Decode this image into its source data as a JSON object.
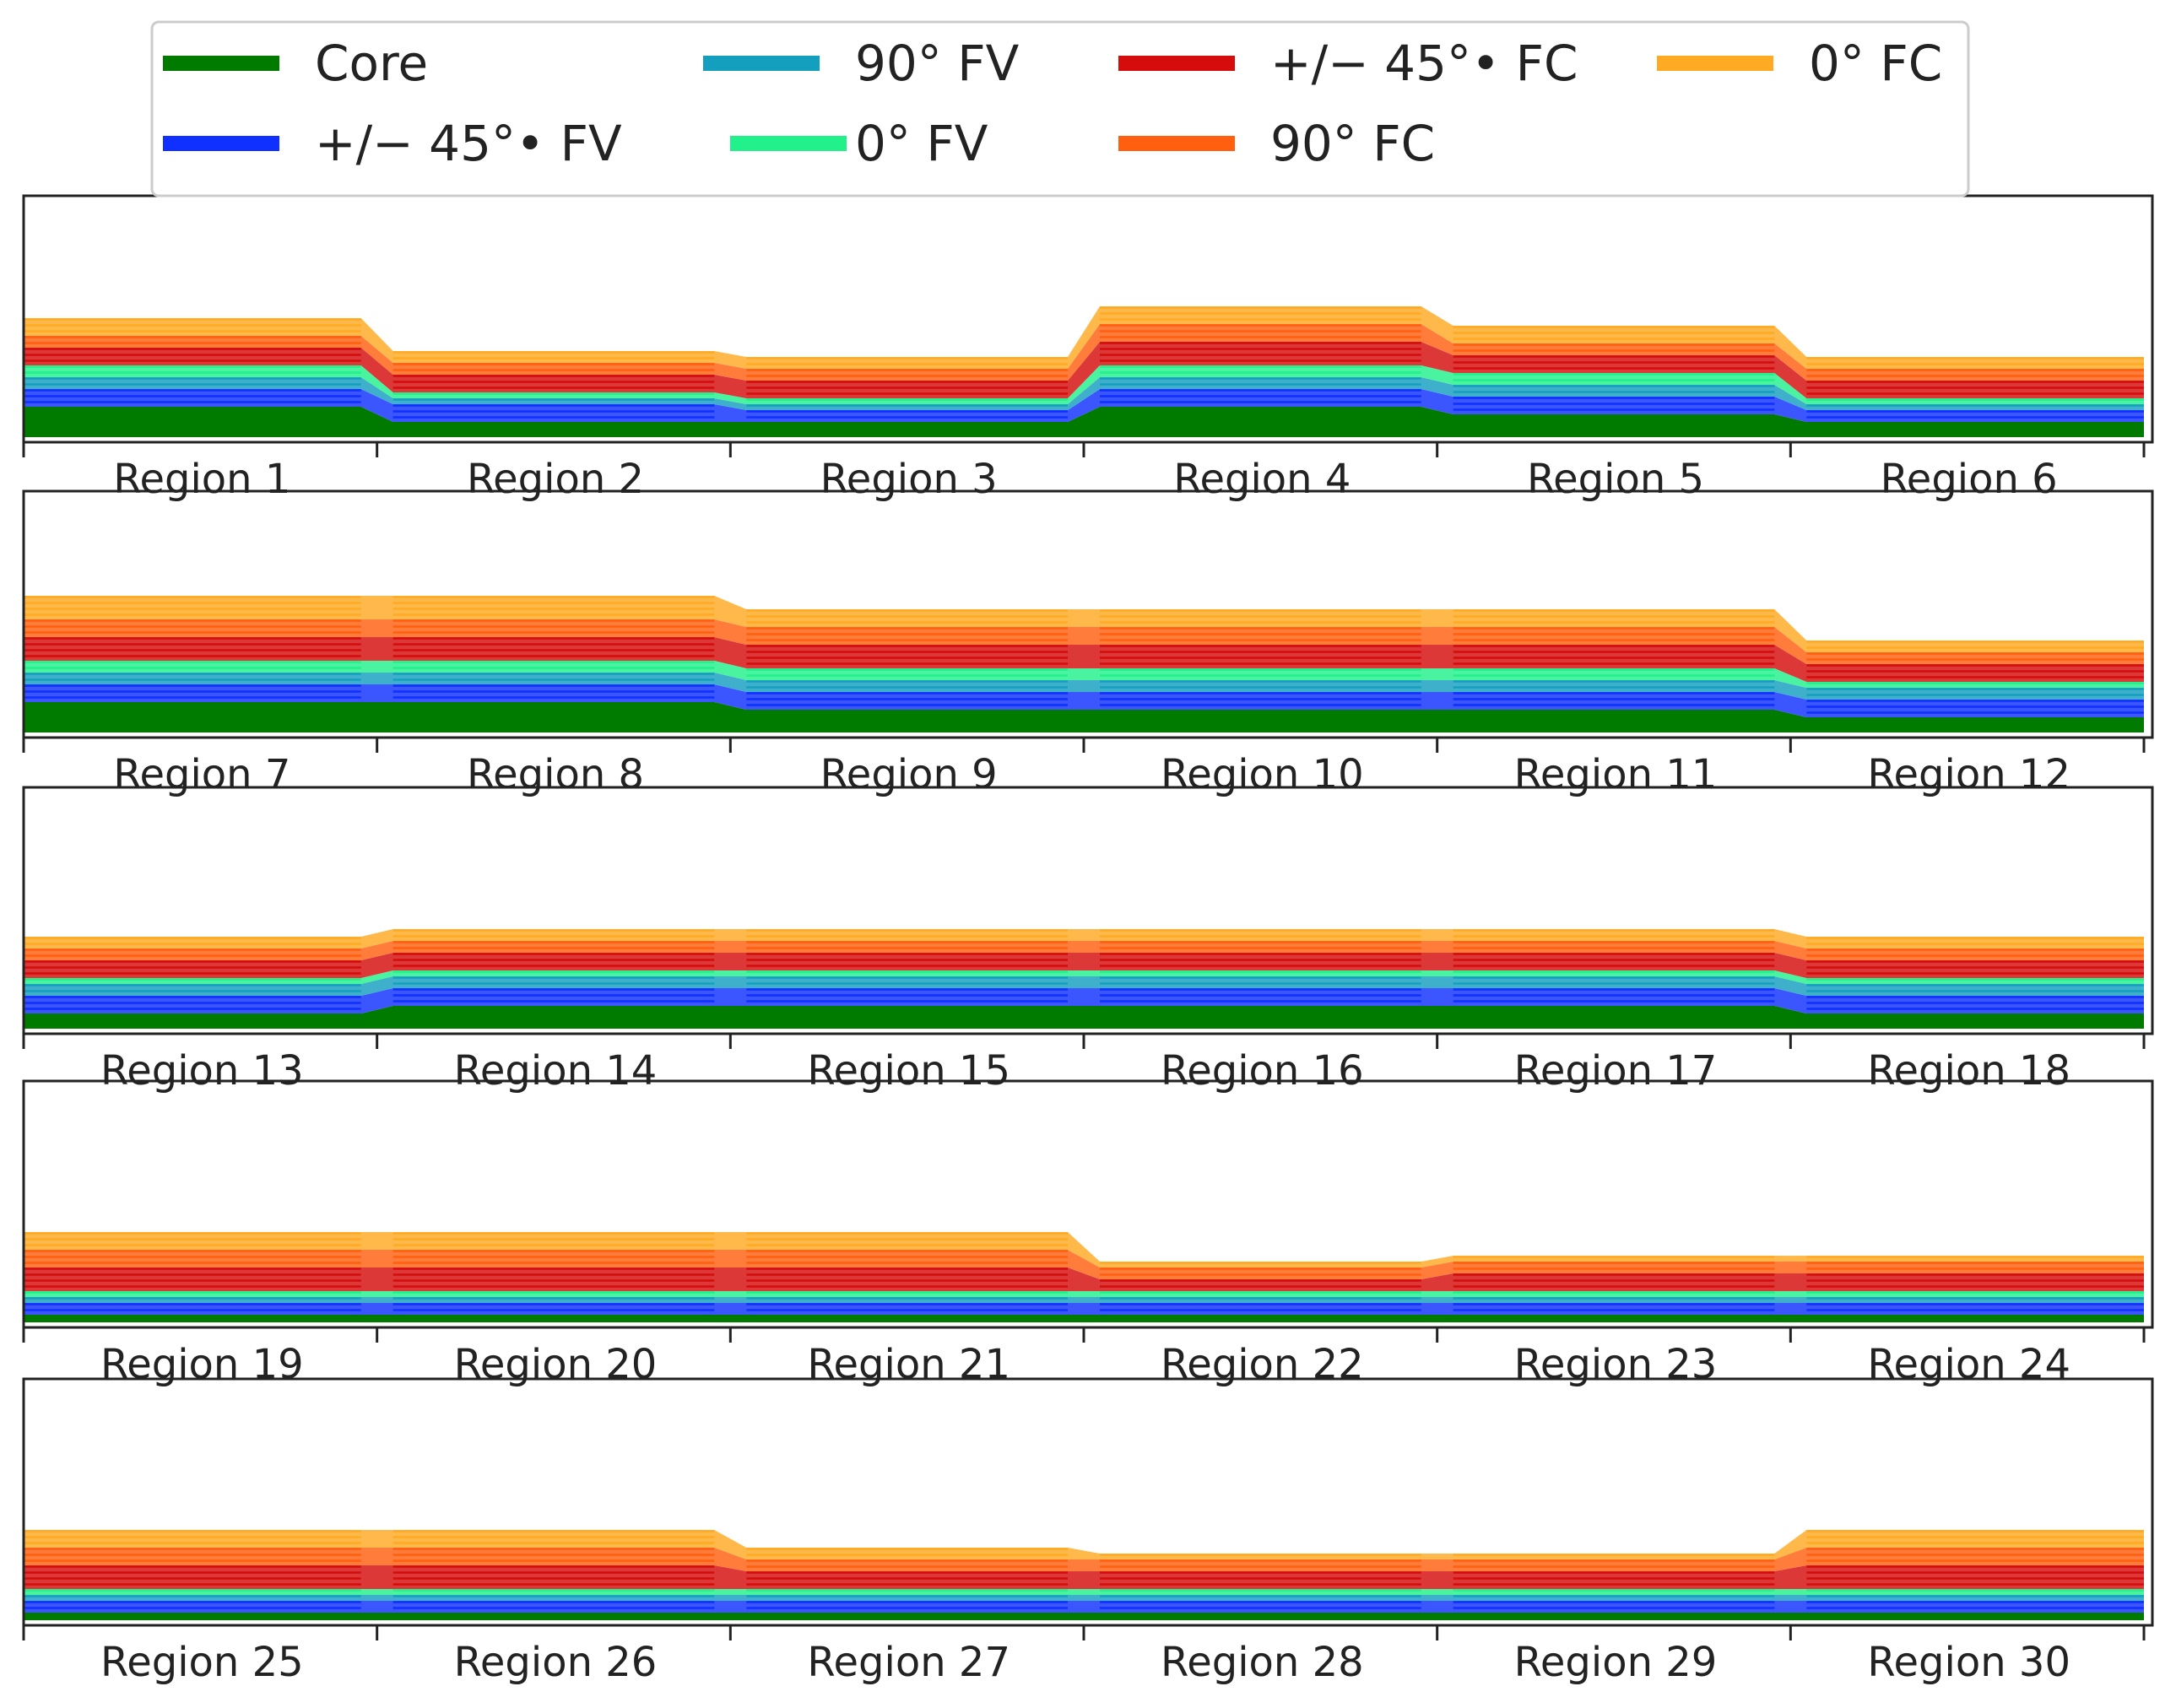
{
  "chart_data": {
    "type": "stacked-profile",
    "colors": {
      "core": "#007b00",
      "pm45_fv": "#1030ff",
      "deg90_fv": "#149fbf",
      "deg0_fv": "#22f08a",
      "pm45_fc": "#d40c0c",
      "deg90_fc": "#ff5f0f",
      "deg0_fc": "#ffaa22",
      "frame": "#222222",
      "legend_border": "#cccccc"
    },
    "legend": [
      {
        "key": "core",
        "label": "Core",
        "color": "#007b00"
      },
      {
        "key": "pm45_fv",
        "label": "+/− 45°• FV",
        "color": "#1030ff"
      },
      {
        "key": "deg90_fv",
        "label": "90° FV",
        "color": "#149fbf"
      },
      {
        "key": "deg0_fv",
        "label": "0° FV",
        "color": "#22f08a"
      },
      {
        "key": "pm45_fc",
        "label": "+/− 45°• FC",
        "color": "#d40c0c"
      },
      {
        "key": "deg90_fc",
        "label": "90° FC",
        "color": "#ff5f0f"
      },
      {
        "key": "deg0_fc",
        "label": "0° FC",
        "color": "#ffaa22"
      }
    ],
    "ply_order_bottom_to_top": [
      "core",
      "pm45_fv",
      "deg90_fv",
      "deg0_fv",
      "pm45_fc",
      "deg90_fc",
      "deg0_fc"
    ],
    "panels": [
      {
        "regions": [
          {
            "label": "Region 1",
            "core": 4,
            "pm45_fv": 3,
            "deg90_fv": 2,
            "deg0_fv": 2,
            "pm45_fc": 3,
            "deg90_fc": 2,
            "deg0_fc": 3
          },
          {
            "label": "Region 2",
            "core": 2,
            "pm45_fv": 3,
            "deg90_fv": 1,
            "deg0_fv": 1,
            "pm45_fc": 3,
            "deg90_fc": 2,
            "deg0_fc": 2
          },
          {
            "label": "Region 3",
            "core": 2,
            "pm45_fv": 2,
            "deg90_fv": 1,
            "deg0_fv": 1,
            "pm45_fc": 3,
            "deg90_fc": 2,
            "deg0_fc": 2
          },
          {
            "label": "Region 4",
            "core": 4,
            "pm45_fv": 3,
            "deg90_fv": 2,
            "deg0_fv": 2,
            "pm45_fc": 4,
            "deg90_fc": 3,
            "deg0_fc": 3
          },
          {
            "label": "Region 5",
            "core": 3,
            "pm45_fv": 3,
            "deg90_fv": 2,
            "deg0_fv": 2,
            "pm45_fc": 3,
            "deg90_fc": 2,
            "deg0_fc": 3
          },
          {
            "label": "Region 6",
            "core": 2,
            "pm45_fv": 2,
            "deg90_fv": 1,
            "deg0_fv": 1,
            "pm45_fc": 3,
            "deg90_fc": 2,
            "deg0_fc": 2
          }
        ]
      },
      {
        "regions": [
          {
            "label": "Region 7",
            "core": 4,
            "pm45_fv": 3,
            "deg90_fv": 2,
            "deg0_fv": 2,
            "pm45_fc": 4,
            "deg90_fc": 3,
            "deg0_fc": 4
          },
          {
            "label": "Region 8",
            "core": 4,
            "pm45_fv": 3,
            "deg90_fv": 2,
            "deg0_fv": 2,
            "pm45_fc": 4,
            "deg90_fc": 3,
            "deg0_fc": 4
          },
          {
            "label": "Region 9",
            "core": 3,
            "pm45_fv": 3,
            "deg90_fv": 2,
            "deg0_fv": 2,
            "pm45_fc": 4,
            "deg90_fc": 3,
            "deg0_fc": 3
          },
          {
            "label": "Region 10",
            "core": 3,
            "pm45_fv": 3,
            "deg90_fv": 2,
            "deg0_fv": 2,
            "pm45_fc": 4,
            "deg90_fc": 3,
            "deg0_fc": 3
          },
          {
            "label": "Region 11",
            "core": 3,
            "pm45_fv": 3,
            "deg90_fv": 2,
            "deg0_fv": 2,
            "pm45_fc": 4,
            "deg90_fc": 3,
            "deg0_fc": 3
          },
          {
            "label": "Region 12",
            "core": 2,
            "pm45_fv": 3,
            "deg90_fv": 2,
            "deg0_fv": 1,
            "pm45_fc": 3,
            "deg90_fc": 2,
            "deg0_fc": 2
          }
        ]
      },
      {
        "regions": [
          {
            "label": "Region 13",
            "core": 2,
            "pm45_fv": 3,
            "deg90_fv": 2,
            "deg0_fv": 1,
            "pm45_fc": 3,
            "deg90_fc": 2,
            "deg0_fc": 2
          },
          {
            "label": "Region 14",
            "core": 3,
            "pm45_fv": 3,
            "deg90_fv": 2,
            "deg0_fv": 1,
            "pm45_fc": 3,
            "deg90_fc": 2,
            "deg0_fc": 2
          },
          {
            "label": "Region 15",
            "core": 3,
            "pm45_fv": 3,
            "deg90_fv": 2,
            "deg0_fv": 1,
            "pm45_fc": 3,
            "deg90_fc": 2,
            "deg0_fc": 2
          },
          {
            "label": "Region 16",
            "core": 3,
            "pm45_fv": 3,
            "deg90_fv": 2,
            "deg0_fv": 1,
            "pm45_fc": 3,
            "deg90_fc": 2,
            "deg0_fc": 2
          },
          {
            "label": "Region 17",
            "core": 3,
            "pm45_fv": 3,
            "deg90_fv": 2,
            "deg0_fv": 1,
            "pm45_fc": 3,
            "deg90_fc": 2,
            "deg0_fc": 2
          },
          {
            "label": "Region 18",
            "core": 2,
            "pm45_fv": 3,
            "deg90_fv": 2,
            "deg0_fv": 1,
            "pm45_fc": 3,
            "deg90_fc": 2,
            "deg0_fc": 2
          }
        ]
      },
      {
        "regions": [
          {
            "label": "Region 19",
            "core": 1,
            "pm45_fv": 2,
            "deg90_fv": 1,
            "deg0_fv": 1,
            "pm45_fc": 4,
            "deg90_fc": 3,
            "deg0_fc": 3
          },
          {
            "label": "Region 20",
            "core": 1,
            "pm45_fv": 2,
            "deg90_fv": 1,
            "deg0_fv": 1,
            "pm45_fc": 4,
            "deg90_fc": 3,
            "deg0_fc": 3
          },
          {
            "label": "Region 21",
            "core": 1,
            "pm45_fv": 2,
            "deg90_fv": 1,
            "deg0_fv": 1,
            "pm45_fc": 4,
            "deg90_fc": 3,
            "deg0_fc": 3
          },
          {
            "label": "Region 22",
            "core": 1,
            "pm45_fv": 2,
            "deg90_fv": 1,
            "deg0_fv": 1,
            "pm45_fc": 2,
            "deg90_fc": 2,
            "deg0_fc": 1
          },
          {
            "label": "Region 23",
            "core": 1,
            "pm45_fv": 2,
            "deg90_fv": 1,
            "deg0_fv": 1,
            "pm45_fc": 3,
            "deg90_fc": 2,
            "deg0_fc": 1
          },
          {
            "label": "Region 24",
            "core": 1,
            "pm45_fv": 2,
            "deg90_fv": 1,
            "deg0_fv": 1,
            "pm45_fc": 3,
            "deg90_fc": 2,
            "deg0_fc": 1
          }
        ]
      },
      {
        "regions": [
          {
            "label": "Region 25",
            "core": 1,
            "pm45_fv": 2,
            "deg90_fv": 1,
            "deg0_fv": 1,
            "pm45_fc": 4,
            "deg90_fc": 3,
            "deg0_fc": 3
          },
          {
            "label": "Region 26",
            "core": 1,
            "pm45_fv": 2,
            "deg90_fv": 1,
            "deg0_fv": 1,
            "pm45_fc": 4,
            "deg90_fc": 3,
            "deg0_fc": 3
          },
          {
            "label": "Region 27",
            "core": 1,
            "pm45_fv": 2,
            "deg90_fv": 1,
            "deg0_fv": 1,
            "pm45_fc": 3,
            "deg90_fc": 2,
            "deg0_fc": 2
          },
          {
            "label": "Region 28",
            "core": 1,
            "pm45_fv": 2,
            "deg90_fv": 1,
            "deg0_fv": 1,
            "pm45_fc": 3,
            "deg90_fc": 2,
            "deg0_fc": 1
          },
          {
            "label": "Region 29",
            "core": 1,
            "pm45_fv": 2,
            "deg90_fv": 1,
            "deg0_fv": 1,
            "pm45_fc": 3,
            "deg90_fc": 2,
            "deg0_fc": 1
          },
          {
            "label": "Region 30",
            "core": 1,
            "pm45_fv": 2,
            "deg90_fv": 1,
            "deg0_fv": 1,
            "pm45_fc": 4,
            "deg90_fc": 3,
            "deg0_fc": 3
          }
        ]
      }
    ]
  }
}
